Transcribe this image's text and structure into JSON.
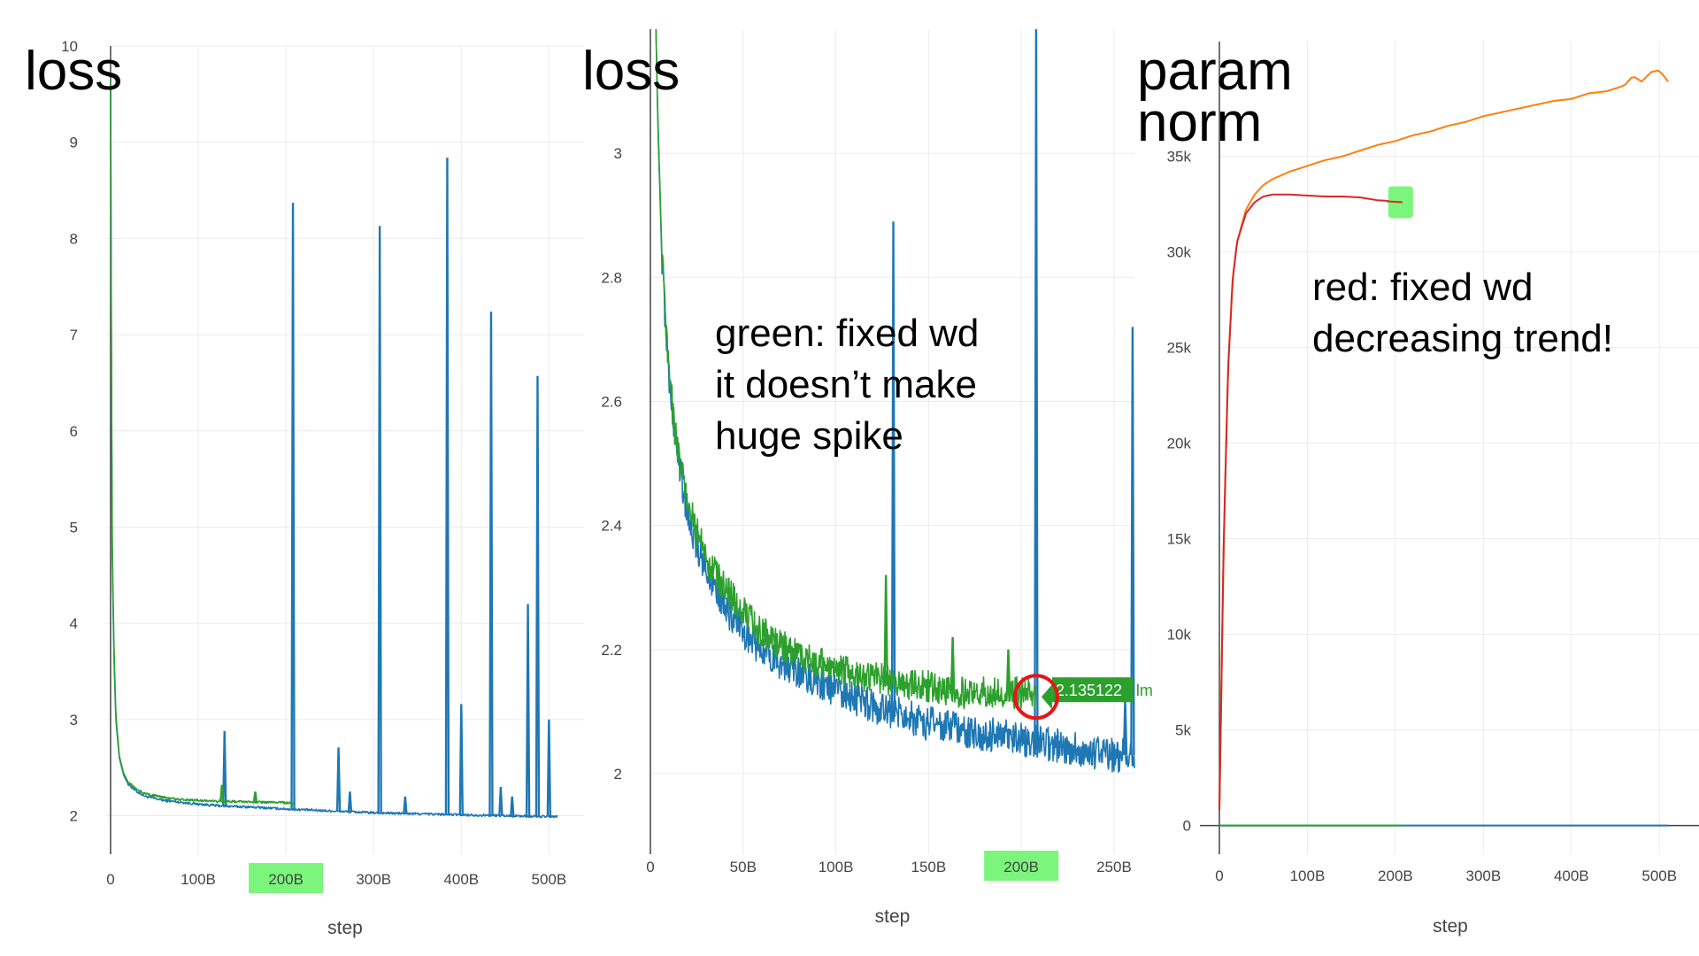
{
  "colors": {
    "blue": "#1f77b4",
    "green": "#2ca02c",
    "orange": "#ff7f0e",
    "red": "#d62728",
    "highlight": "#7cf57c",
    "grid": "#ebebeb",
    "axis": "#444444",
    "tick_text": "#444444"
  },
  "annotations": {
    "left_title": "loss",
    "middle_title": "loss",
    "right_title": "param\nnorm",
    "middle_note": "green: fixed wd\nit doesn’t make\nhuge spike",
    "right_note": "red: fixed wd\ndecreasing trend!",
    "hover_label": "2.135122",
    "hover_suffix": "lm"
  },
  "chart_data": [
    {
      "type": "line",
      "title": "",
      "xlabel": "step",
      "ylabel": "",
      "xlim": [
        -5,
        540
      ],
      "ylim": [
        1.6,
        10
      ],
      "xticks": [
        0,
        100,
        200,
        300,
        400,
        500
      ],
      "xtick_labels": [
        "0",
        "100B",
        "200B",
        "300B",
        "400B",
        "500B"
      ],
      "yticks": [
        2,
        3,
        4,
        5,
        6,
        7,
        8,
        9,
        10
      ],
      "ytick_labels": [
        "2",
        "3",
        "4",
        "5",
        "6",
        "7",
        "8",
        "9",
        "10"
      ],
      "highlighted_tick": "200B",
      "grid": true,
      "series": [
        {
          "color": "blue",
          "x": [
            0,
            1,
            2,
            4,
            6,
            10,
            15,
            20,
            30,
            40,
            60,
            80,
            100,
            130,
            160,
            200,
            250,
            300,
            350,
            400,
            450,
            500,
            510
          ],
          "y": [
            9.6,
            6.5,
            4.6,
            3.6,
            3.0,
            2.6,
            2.42,
            2.33,
            2.25,
            2.2,
            2.16,
            2.14,
            2.12,
            2.1,
            2.09,
            2.07,
            2.05,
            2.03,
            2.02,
            2.01,
            2.0,
            1.99,
            1.99
          ],
          "spikes": [
            [
              130,
              2.88
            ],
            [
              208,
              8.37
            ],
            [
              260,
              2.71
            ],
            [
              273,
              2.25
            ],
            [
              307,
              8.13
            ],
            [
              336,
              2.2
            ],
            [
              384,
              8.84
            ],
            [
              400,
              3.16
            ],
            [
              434,
              7.24
            ],
            [
              445,
              2.3
            ],
            [
              476,
              4.2
            ],
            [
              487,
              6.57
            ],
            [
              500,
              3.0
            ],
            [
              458,
              2.2
            ]
          ]
        },
        {
          "color": "green",
          "x": [
            0,
            1,
            2,
            4,
            6,
            10,
            15,
            20,
            30,
            40,
            60,
            80,
            100,
            130,
            160,
            190,
            208
          ],
          "y": [
            9.7,
            6.6,
            4.7,
            3.7,
            3.05,
            2.62,
            2.44,
            2.35,
            2.27,
            2.23,
            2.19,
            2.17,
            2.16,
            2.15,
            2.14,
            2.14,
            2.13
          ],
          "spikes": [
            [
              127,
              2.32
            ],
            [
              165,
              2.25
            ]
          ]
        }
      ]
    },
    {
      "type": "line",
      "title": "",
      "xlabel": "step",
      "ylabel": "",
      "xlim": [
        0,
        261
      ],
      "ylim": [
        1.87,
        3.2
      ],
      "xticks": [
        0,
        50,
        100,
        150,
        200,
        250
      ],
      "xtick_labels": [
        "0",
        "50B",
        "100B",
        "150B",
        "200B",
        "250B"
      ],
      "yticks": [
        2,
        2.2,
        2.4,
        2.6,
        2.8,
        3
      ],
      "ytick_labels": [
        "2",
        "2.2",
        "2.4",
        "2.6",
        "2.8",
        "3"
      ],
      "highlighted_tick": "200B",
      "hover_point": [
        208,
        2.135122
      ],
      "grid": true,
      "series": [
        {
          "color": "blue",
          "x": [
            3,
            4,
            5,
            6,
            8,
            10,
            13,
            16,
            20,
            25,
            30,
            40,
            50,
            60,
            75,
            90,
            110,
            130,
            150,
            170,
            190,
            210,
            230,
            250,
            261
          ],
          "y": [
            3.2,
            3.05,
            2.95,
            2.85,
            2.73,
            2.64,
            2.55,
            2.49,
            2.42,
            2.37,
            2.33,
            2.27,
            2.23,
            2.2,
            2.17,
            2.15,
            2.12,
            2.1,
            2.08,
            2.07,
            2.06,
            2.05,
            2.04,
            2.03,
            2.03
          ],
          "spikes": [
            [
              131,
              2.89
            ],
            [
              208,
              3.2
            ],
            [
              260,
              2.72
            ],
            [
              256,
              2.12
            ]
          ]
        },
        {
          "color": "green",
          "x": [
            3,
            4,
            5,
            6,
            8,
            10,
            13,
            16,
            20,
            25,
            30,
            40,
            50,
            60,
            75,
            90,
            110,
            130,
            150,
            170,
            190,
            208
          ],
          "y": [
            3.2,
            3.06,
            2.96,
            2.86,
            2.74,
            2.65,
            2.56,
            2.5,
            2.44,
            2.39,
            2.35,
            2.3,
            2.26,
            2.23,
            2.2,
            2.18,
            2.16,
            2.15,
            2.14,
            2.13,
            2.13,
            2.13
          ],
          "spikes": [
            [
              127,
              2.32
            ],
            [
              163,
              2.22
            ],
            [
              193,
              2.2
            ]
          ]
        }
      ]
    },
    {
      "type": "line",
      "title": "",
      "xlabel": "step",
      "ylabel": "",
      "xlim": [
        0,
        545
      ],
      "ylim": [
        -1500,
        41000
      ],
      "xticks": [
        0,
        100,
        200,
        300,
        400,
        500
      ],
      "xtick_labels": [
        "0",
        "100B",
        "200B",
        "300B",
        "400B",
        "500B"
      ],
      "yticks": [
        0,
        5000,
        10000,
        15000,
        20000,
        25000,
        30000,
        35000
      ],
      "ytick_labels": [
        "0",
        "5k",
        "10k",
        "15k",
        "20k",
        "25k",
        "30k",
        "35k"
      ],
      "grid": true,
      "series": [
        {
          "color": "orange",
          "x": [
            0,
            5,
            10,
            15,
            20,
            30,
            40,
            50,
            60,
            70,
            80,
            100,
            120,
            140,
            160,
            180,
            200,
            220,
            240,
            260,
            280,
            300,
            320,
            340,
            360,
            380,
            400,
            420,
            440,
            460,
            470,
            480,
            490,
            500,
            505,
            510
          ],
          "y": [
            800,
            15000,
            24000,
            28500,
            30500,
            32200,
            33000,
            33500,
            33800,
            34000,
            34200,
            34500,
            34800,
            35000,
            35300,
            35600,
            35800,
            36100,
            36300,
            36600,
            36800,
            37100,
            37300,
            37500,
            37700,
            37900,
            38000,
            38300,
            38400,
            38700,
            39200,
            38900,
            39400,
            39500,
            39200,
            38900
          ]
        },
        {
          "color": "red",
          "x": [
            0,
            5,
            10,
            15,
            20,
            30,
            40,
            50,
            60,
            70,
            80,
            100,
            120,
            140,
            160,
            180,
            200,
            208
          ],
          "y": [
            800,
            15000,
            24000,
            28500,
            30500,
            32000,
            32600,
            32900,
            33000,
            33000,
            33000,
            32950,
            32900,
            32900,
            32850,
            32700,
            32650,
            32600
          ]
        },
        {
          "color": "blue",
          "x": [
            0,
            510
          ],
          "y": [
            0,
            0
          ]
        },
        {
          "color": "green",
          "x": [
            0,
            208
          ],
          "y": [
            0,
            0
          ]
        }
      ]
    }
  ]
}
